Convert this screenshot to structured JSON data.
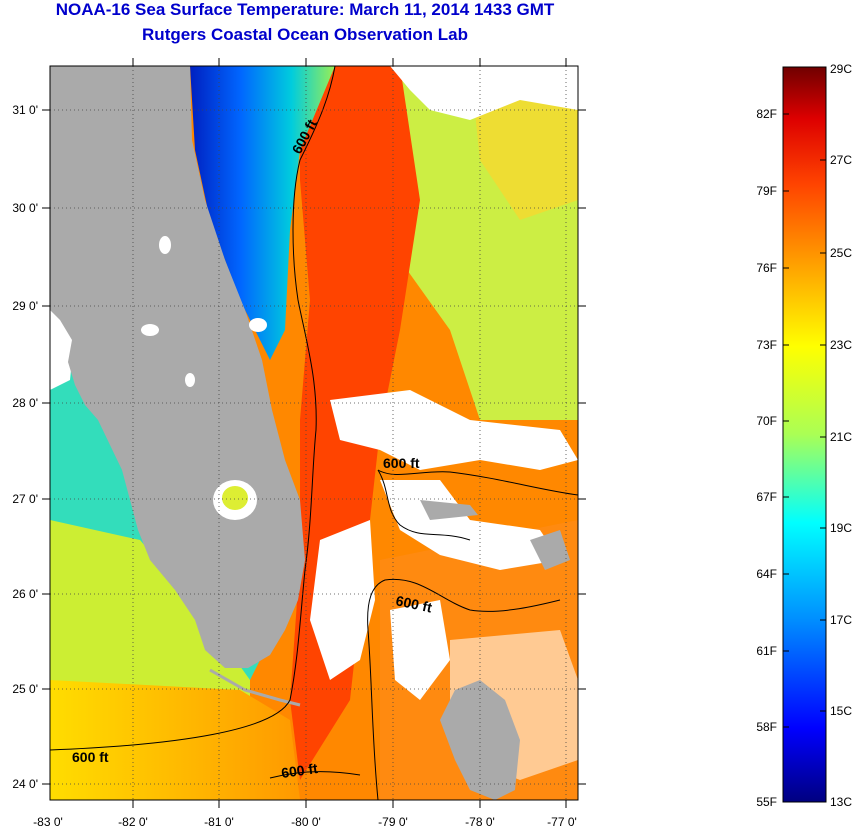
{
  "header": {
    "title": "NOAA-16 Sea Surface Temperature:  March 11, 2014 1433 GMT",
    "subtitle": "Rutgers Coastal Ocean Observation Lab"
  },
  "map": {
    "lat_labels": [
      "31 0'",
      "30 0'",
      "29 0'",
      "28 0'",
      "27 0'",
      "26 0'",
      "25 0'",
      "24 0'"
    ],
    "lon_labels": [
      "-83 0'",
      "-82 0'",
      "-81 0'",
      "-80 0'",
      "-79 0'",
      "-78 0'",
      "-77 0'"
    ],
    "contour_labels": [
      "600 ft",
      "600 ft",
      "600 ft",
      "600 ft",
      "600 ft"
    ],
    "land_color": "#aaaaaa",
    "cloud_color": "#ffffff"
  },
  "colorbar": {
    "fahrenheit_labels": [
      "82F",
      "79F",
      "76F",
      "73F",
      "70F",
      "67F",
      "64F",
      "61F",
      "58F",
      "55F"
    ],
    "celsius_labels": [
      "29C",
      "27C",
      "25C",
      "23C",
      "21C",
      "19C",
      "17C",
      "15C",
      "13C"
    ],
    "range_c": [
      13,
      29
    ],
    "colors": [
      "#000080",
      "#0000ff",
      "#00aaff",
      "#00ffff",
      "#aaff55",
      "#ffff00",
      "#ffaa00",
      "#ff5500",
      "#ff0000",
      "#800000"
    ]
  }
}
